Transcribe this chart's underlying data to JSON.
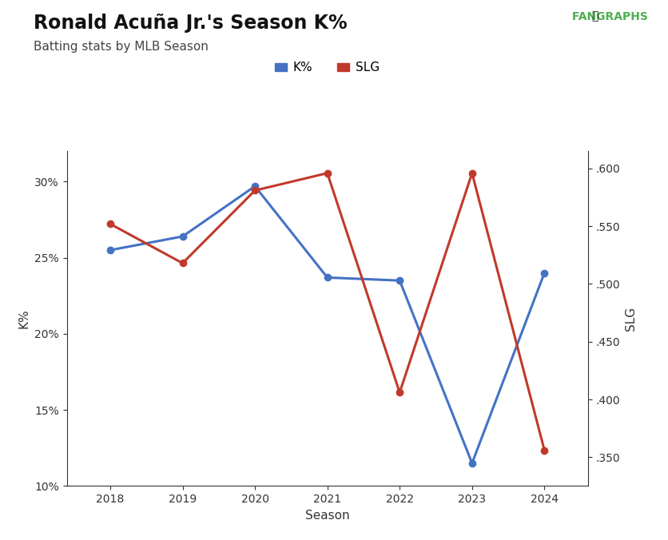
{
  "title": "Ronald Acuña Jr.'s Season K%",
  "subtitle": "Batting stats by MLB Season",
  "xlabel": "Season",
  "ylabel_left": "K%",
  "ylabel_right": "SLG",
  "seasons": [
    2018,
    2019,
    2020,
    2021,
    2022,
    2023,
    2024
  ],
  "k_pct": [
    0.255,
    0.264,
    0.297,
    0.237,
    0.235,
    0.115,
    0.24
  ],
  "slg": [
    0.552,
    0.518,
    0.581,
    0.596,
    0.406,
    0.596,
    0.356
  ],
  "k_color": "#4472c4",
  "slg_color": "#c0392b",
  "line_width": 2.2,
  "marker_size": 6,
  "ylim_left": [
    0.1,
    0.32
  ],
  "ylim_right": [
    0.325,
    0.615
  ],
  "yticks_left": [
    0.1,
    0.15,
    0.2,
    0.25,
    0.3
  ],
  "yticks_right": [
    0.35,
    0.4,
    0.45,
    0.5,
    0.55,
    0.6
  ],
  "background_color": "#ffffff",
  "title_fontsize": 17,
  "subtitle_fontsize": 11,
  "axis_label_fontsize": 11,
  "tick_fontsize": 10,
  "legend_fontsize": 11
}
